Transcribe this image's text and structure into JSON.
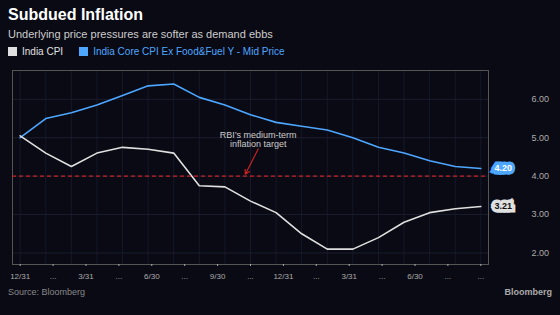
{
  "chart_data": {
    "type": "line",
    "title": "Subdued Inflation",
    "subtitle": "Underlying price pressures are softer as demand ebbs",
    "x": [
      0,
      1,
      2,
      3,
      4,
      5,
      6,
      7,
      8,
      9,
      10,
      11,
      12,
      13,
      14,
      15,
      16,
      17,
      18
    ],
    "xlim": [
      -0.3,
      18.3
    ],
    "xticks": [
      {
        "value": 0,
        "label": "12/31"
      },
      {
        "value": 1.2857142857142858,
        "label": "..."
      },
      {
        "value": 2.5714285714285716,
        "label": "3/31"
      },
      {
        "value": 3.857142857142857,
        "label": "..."
      },
      {
        "value": 5.142857142857143,
        "label": "6/30"
      },
      {
        "value": 6.428571428571429,
        "label": "..."
      },
      {
        "value": 7.714285714285714,
        "label": "9/30"
      },
      {
        "value": 9,
        "label": "..."
      },
      {
        "value": 10.285714285714286,
        "label": "12/31"
      },
      {
        "value": 11.571428571428571,
        "label": "..."
      },
      {
        "value": 12.857142857142858,
        "label": "3/31"
      },
      {
        "value": 14.142857142857142,
        "label": "..."
      },
      {
        "value": 15.428571428571429,
        "label": "6/30"
      },
      {
        "value": 16.714285714285715,
        "label": "..."
      },
      {
        "value": 18,
        "label": "..."
      }
    ],
    "ylim": [
      1.7,
      6.75
    ],
    "yticks": [
      {
        "value": 2,
        "label": "2.00"
      },
      {
        "value": 3,
        "label": "3.00"
      },
      {
        "value": 4,
        "label": "4.00"
      },
      {
        "value": 5,
        "label": "5.00"
      },
      {
        "value": 6,
        "label": "6.00"
      }
    ],
    "grid": true,
    "legend": "top-left",
    "series": [
      {
        "name": "India CPI",
        "color": "#e0e0e0",
        "values": [
          5.05,
          4.6,
          4.25,
          4.6,
          4.75,
          4.7,
          4.6,
          3.75,
          3.72,
          3.35,
          3.05,
          2.5,
          2.1,
          2.1,
          2.4,
          2.8,
          3.05,
          3.15,
          3.21
        ],
        "end_label": "3.21"
      },
      {
        "name": "India Core CPI Ex Food&Fuel Y - Mid Price",
        "color": "#4da6ff",
        "values": [
          5.0,
          5.5,
          5.65,
          5.85,
          6.1,
          6.35,
          6.4,
          6.05,
          5.85,
          5.6,
          5.4,
          5.3,
          5.2,
          5.0,
          4.75,
          4.6,
          4.4,
          4.25,
          4.2
        ],
        "end_label": "4.20"
      }
    ],
    "reference_lines": [
      {
        "value": 4.0,
        "color": "#cc2222",
        "line_style": "dashed"
      }
    ],
    "annotations": [
      "RBI’s medium-term\ninflation target"
    ],
    "source": "Source: Bloomberg",
    "branding": "Bloomberg"
  }
}
